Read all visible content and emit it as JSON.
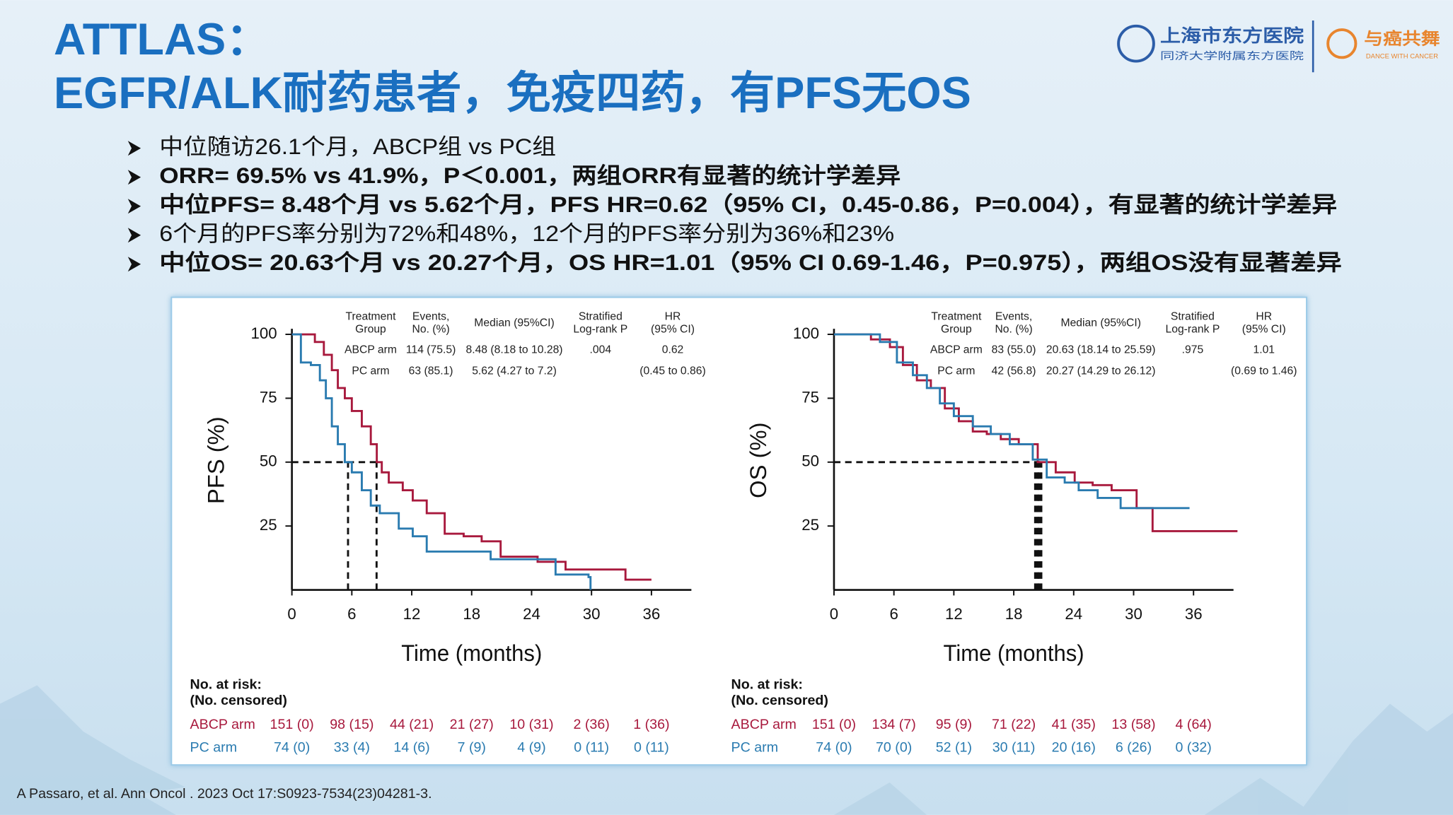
{
  "header": {
    "title_lines": [
      "ATTLAS：",
      "EGFR/ALK耐药患者，免疫四药，有PFS无OS"
    ]
  },
  "logo": {
    "hospital": "上海市东方医院",
    "hospital_sub": "同济大学附属东方医院",
    "brand": "与癌共舞",
    "brand_sub": "DANCE WITH CANCER"
  },
  "bullets": [
    {
      "text": "中位随访26.1个月，ABCP组 vs PC组",
      "bold": false
    },
    {
      "text": "ORR= 69.5% vs 41.9%，P＜0.001，两组ORR有显著的统计学差异",
      "bold": true
    },
    {
      "text": "中位PFS= 8.48个月 vs 5.62个月，PFS HR=0.62（95% CI，0.45-0.86，P=0.004），有显著的统计学差异",
      "bold": true
    },
    {
      "text": "6个月的PFS率分别为72%和48%，12个月的PFS率分别为36%和23%",
      "bold": false
    },
    {
      "text": "中位OS= 20.63个月 vs 20.27个月，OS HR=1.01（95% CI 0.69-1.46，P=0.975），两组OS没有显著差异",
      "bold": true
    }
  ],
  "citation": "A Passaro, et al. Ann Oncol . 2023 Oct 17:S0923-7534(23)04281-3.",
  "chart_data": [
    {
      "type": "step",
      "xlabel": "Time (months)",
      "ylabel": "PFS (%)",
      "xlim": [
        0,
        40
      ],
      "ylim": [
        0,
        100
      ],
      "xticks": [
        0,
        6,
        12,
        18,
        24,
        30,
        36
      ],
      "yticks": [
        25,
        50,
        75,
        100
      ],
      "series": [
        {
          "name": "ABCP arm",
          "color": "#a8193d",
          "x": [
            0,
            1.4,
            2.3,
            3.2,
            4.0,
            4.6,
            5.3,
            6.0,
            7.0,
            7.9,
            8.5,
            9.0,
            9.7,
            11.1,
            12.1,
            13.5,
            15.3,
            17.2,
            19.0,
            20.9,
            24.6,
            27.4,
            33.4,
            36
          ],
          "values": [
            100,
            100,
            97,
            92,
            86,
            79,
            75,
            70,
            64,
            57,
            50,
            46,
            42,
            39,
            35,
            30,
            22,
            21,
            19,
            13,
            11,
            8,
            4,
            4
          ]
        },
        {
          "name": "PC arm",
          "color": "#2a7bb0",
          "x": [
            0,
            0.9,
            1.9,
            2.8,
            3.4,
            4.0,
            4.6,
            5.3,
            6.0,
            7.0,
            7.9,
            8.8,
            10.7,
            12.1,
            13.5,
            19.0,
            19.9,
            26.4,
            29.7,
            29.9
          ],
          "values": [
            100,
            89,
            88,
            82,
            75,
            64,
            57,
            50,
            46,
            39,
            33,
            30,
            24,
            21,
            15,
            15,
            12,
            6,
            5,
            0
          ]
        }
      ],
      "reference_lines": {
        "y": 50,
        "x": [
          5.62,
          8.48
        ]
      },
      "table": {
        "header": [
          [
            "Treatment",
            "Group"
          ],
          [
            "Events,",
            "No. (%)"
          ],
          [
            "Median (95%CI)"
          ],
          [
            "Stratified",
            "Log-rank P"
          ],
          [
            "HR",
            "(95% CI)"
          ]
        ],
        "rows": [
          [
            "ABCP arm",
            "114 (75.5)",
            "8.48 (8.18 to 10.28)",
            ".004",
            "0.62"
          ],
          [
            "PC arm",
            "63 (85.1)",
            "5.62 (4.27 to 7.2)",
            null,
            "(0.45 to 0.86)"
          ]
        ]
      },
      "risk_table": {
        "title": [
          "No. at risk:",
          "(No. censored)"
        ],
        "rows": [
          {
            "name": "ABCP arm",
            "values": [
              "151 (0)",
              "98 (15)",
              "44 (21)",
              "21 (27)",
              "10 (31)",
              "2 (36)",
              "1 (36)"
            ]
          },
          {
            "name": "PC arm",
            "values": [
              "74 (0)",
              "33 (4)",
              "14 (6)",
              "7 (9)",
              "4 (9)",
              "0 (11)",
              "0 (11)"
            ]
          }
        ]
      }
    },
    {
      "type": "step",
      "xlabel": "Time (months)",
      "ylabel": "OS (%)",
      "xlim": [
        0,
        40
      ],
      "ylim": [
        0,
        100
      ],
      "xticks": [
        0,
        6,
        12,
        18,
        24,
        30,
        36
      ],
      "yticks": [
        25,
        50,
        75,
        100
      ],
      "series": [
        {
          "name": "ABCP arm",
          "color": "#a8193d",
          "x": [
            0,
            3.7,
            5.6,
            6.9,
            8.3,
            9.7,
            11.1,
            12.5,
            13.9,
            15.3,
            16.7,
            18.5,
            20.4,
            22.2,
            24.1,
            25.9,
            27.8,
            29.6,
            30.3,
            31.4,
            31.9,
            40.4
          ],
          "values": [
            100,
            98,
            95,
            88,
            82,
            79,
            71,
            66,
            62,
            61,
            59,
            57,
            50,
            46,
            42,
            41,
            39,
            39,
            32,
            32,
            23,
            23
          ]
        },
        {
          "name": "PC arm",
          "color": "#2a7bb0",
          "x": [
            0,
            4.6,
            6.3,
            7.9,
            9.3,
            10.6,
            12.0,
            13.9,
            15.7,
            17.6,
            19.9,
            21.3,
            23.1,
            24.5,
            26.4,
            28.7,
            35.6
          ],
          "values": [
            100,
            97,
            89,
            84,
            79,
            73,
            68,
            64,
            61,
            57,
            51,
            44,
            42,
            39,
            36,
            32,
            32
          ]
        }
      ],
      "reference_lines": {
        "y": 50,
        "x": [
          20.27,
          20.63
        ]
      },
      "table": {
        "header": [
          [
            "Treatment",
            "Group"
          ],
          [
            "Events,",
            "No. (%)"
          ],
          [
            "Median (95%CI)"
          ],
          [
            "Stratified",
            "Log-rank P"
          ],
          [
            "HR",
            "(95% CI)"
          ]
        ],
        "rows": [
          [
            "ABCP arm",
            "83 (55.0)",
            "20.63 (18.14 to 25.59)",
            ".975",
            "1.01"
          ],
          [
            "PC arm",
            "42 (56.8)",
            "20.27 (14.29 to 26.12)",
            null,
            "(0.69 to 1.46)"
          ]
        ]
      },
      "risk_table": {
        "title": [
          "No. at risk:",
          "(No. censored)"
        ],
        "rows": [
          {
            "name": "ABCP arm",
            "values": [
              "151 (0)",
              "134 (7)",
              "95 (9)",
              "71 (22)",
              "41 (35)",
              "13 (58)",
              "4 (64)"
            ]
          },
          {
            "name": "PC arm",
            "values": [
              "74 (0)",
              "70 (0)",
              "52 (1)",
              "30 (11)",
              "20 (16)",
              "6 (26)",
              "0 (32)"
            ]
          }
        ]
      }
    }
  ]
}
